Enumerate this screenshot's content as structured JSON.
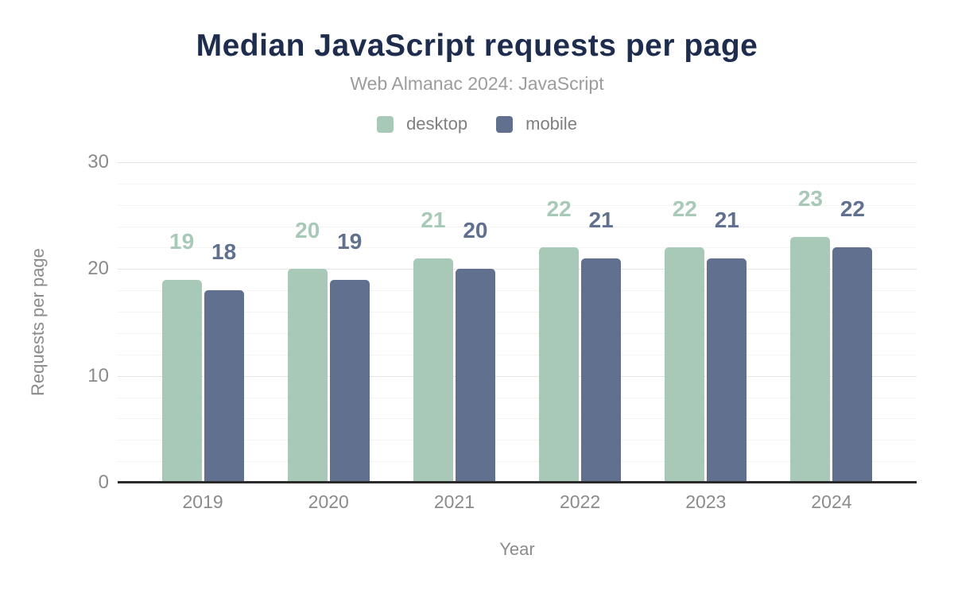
{
  "chart_data": {
    "type": "bar",
    "title": "Median JavaScript requests per page",
    "subtitle": "Web Almanac 2024: JavaScript",
    "xlabel": "Year",
    "ylabel": "Requests per page",
    "categories": [
      "2019",
      "2020",
      "2021",
      "2022",
      "2023",
      "2024"
    ],
    "series": [
      {
        "name": "desktop",
        "color": "#a8c9b8",
        "values": [
          19,
          20,
          21,
          22,
          22,
          23
        ]
      },
      {
        "name": "mobile",
        "color": "#60708e",
        "values": [
          18,
          19,
          20,
          21,
          21,
          22
        ]
      }
    ],
    "ylim": [
      0,
      30
    ],
    "yticks": [
      0,
      10,
      20,
      30
    ],
    "minor_tick_step": 2,
    "grid": true,
    "legend_position": "top",
    "bar_value_labels": true
  },
  "colors": {
    "title": "#1e2d4d",
    "subtitle": "#9c9c9c",
    "axis_text": "#8b8b8b",
    "legend_text": "#7f7f7f",
    "major_grid": "#e4e4e4",
    "minor_grid": "#f4f4f4",
    "axis_line": "#2b2b2b"
  }
}
